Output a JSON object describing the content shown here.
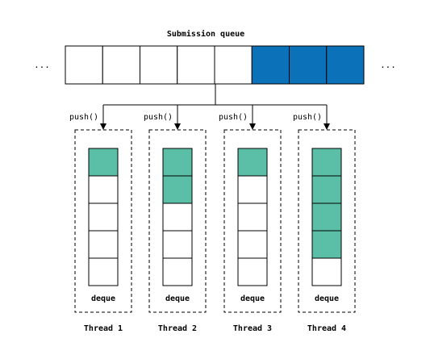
{
  "title": "Submission queue",
  "queue": {
    "ellipsis_left": "...",
    "ellipsis_right": "...",
    "cells": [
      "empty",
      "empty",
      "empty",
      "empty",
      "empty",
      "filled",
      "filled",
      "filled"
    ],
    "filled_color": "#0b72b9"
  },
  "push_label": "push()",
  "deque_fill_color": "#5bbfa8",
  "threads": [
    {
      "label": "Thread 1",
      "deque_label": "deque",
      "filled_slots": 1,
      "total_slots": 5
    },
    {
      "label": "Thread 2",
      "deque_label": "deque",
      "filled_slots": 2,
      "total_slots": 5
    },
    {
      "label": "Thread 3",
      "deque_label": "deque",
      "filled_slots": 1,
      "total_slots": 5
    },
    {
      "label": "Thread 4",
      "deque_label": "deque",
      "filled_slots": 4,
      "total_slots": 5
    }
  ]
}
